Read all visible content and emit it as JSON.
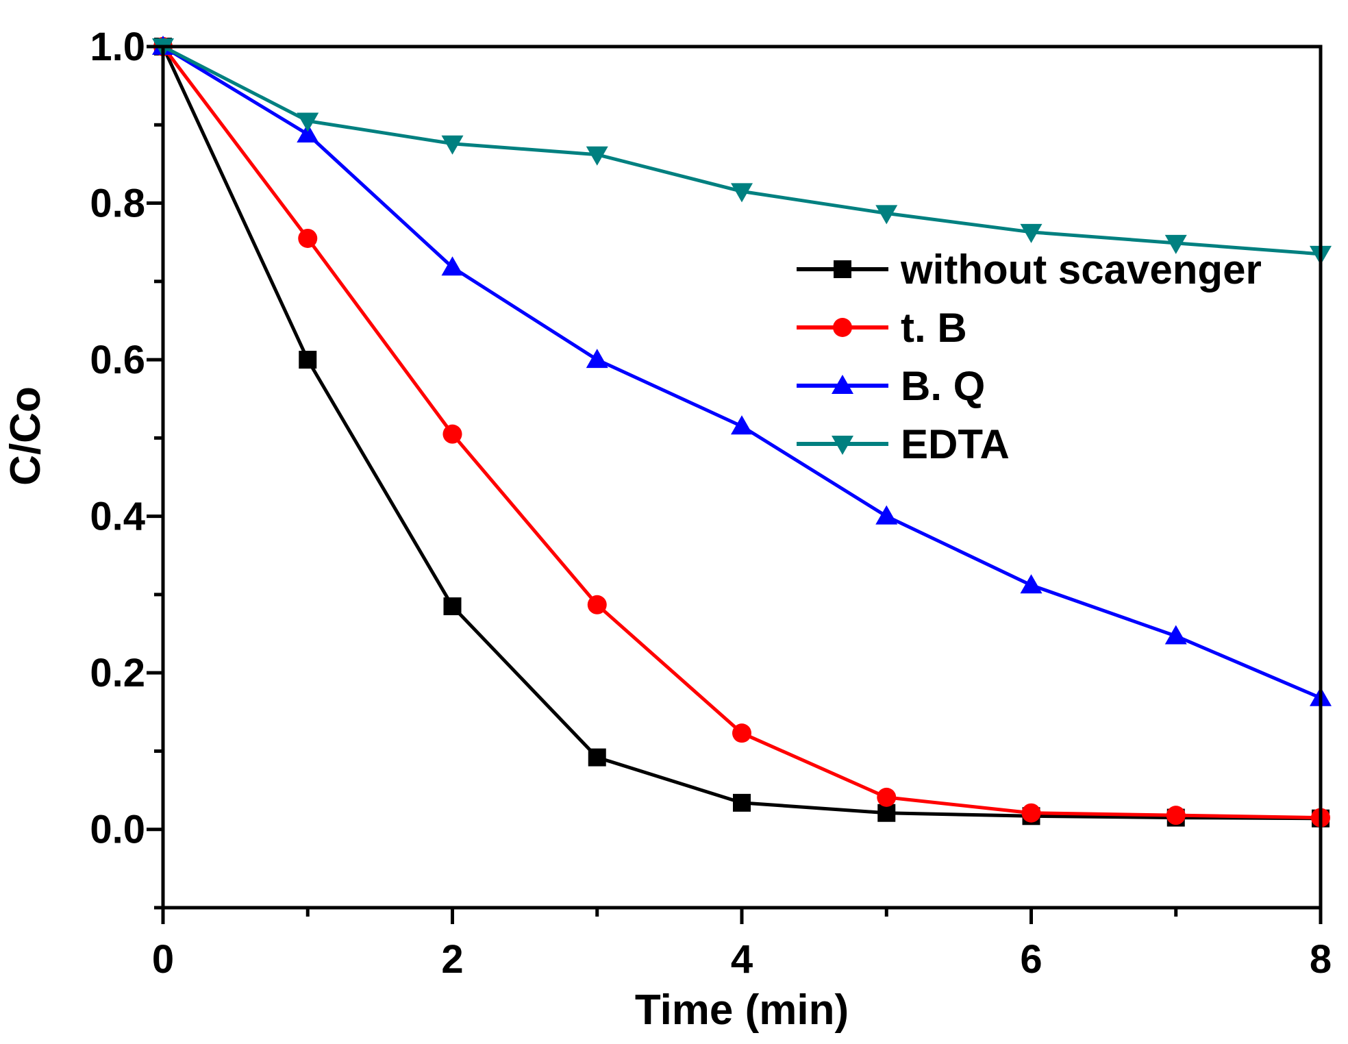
{
  "chart_data": {
    "type": "line",
    "title": "",
    "xlabel": "Time (min)",
    "ylabel": "C/Co",
    "xlim": [
      0,
      8
    ],
    "ylim": [
      -0.1,
      1.0
    ],
    "xticks": [
      0,
      2,
      4,
      6,
      8
    ],
    "xtick_labels": [
      "0",
      "2",
      "4",
      "6",
      "8"
    ],
    "yticks": [
      0.0,
      0.2,
      0.4,
      0.6,
      0.8,
      1.0
    ],
    "ytick_labels": [
      "0.0",
      "0.2",
      "0.4",
      "0.6",
      "0.8",
      "1.0"
    ],
    "grid": false,
    "legend_position": "right",
    "x": [
      0,
      1,
      2,
      3,
      4,
      5,
      6,
      7,
      8
    ],
    "series": [
      {
        "name": "without scavenger",
        "marker": "square",
        "color": "#000000",
        "values": [
          1.0,
          0.6,
          0.285,
          0.092,
          0.034,
          0.021,
          0.017,
          0.015,
          0.014
        ]
      },
      {
        "name": "t. B",
        "marker": "circle",
        "color": "#ff0000",
        "values": [
          1.0,
          0.755,
          0.505,
          0.287,
          0.123,
          0.041,
          0.021,
          0.018,
          0.015
        ]
      },
      {
        "name": "B. Q",
        "marker": "triangle-up",
        "color": "#0000ff",
        "values": [
          1.0,
          0.888,
          0.718,
          0.6,
          0.515,
          0.4,
          0.312,
          0.247,
          0.168
        ]
      },
      {
        "name": "EDTA",
        "marker": "triangle-down",
        "color": "#008080",
        "values": [
          1.0,
          0.905,
          0.876,
          0.862,
          0.815,
          0.787,
          0.763,
          0.749,
          0.735
        ]
      }
    ]
  }
}
